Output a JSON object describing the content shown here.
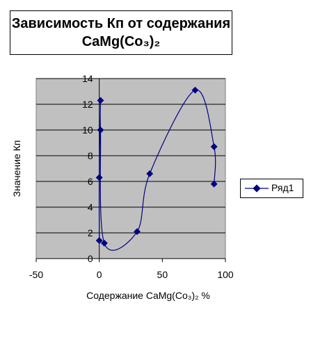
{
  "chart_data": {
    "type": "scatter",
    "title_line1": "Зависимость Кп от содержания",
    "title_line2": "CaMg(Co₃)₂",
    "xlabel": "Содержание CaMg(Co₃)₂ %",
    "ylabel": "Значение Кп",
    "xlim": [
      -50,
      100
    ],
    "ylim": [
      0,
      14
    ],
    "xticks": [
      -50,
      0,
      50,
      100
    ],
    "yticks": [
      0,
      2,
      4,
      6,
      8,
      10,
      12,
      14
    ],
    "grid": "horizontal",
    "legend_position": "right",
    "series": [
      {
        "name": "Ряд1",
        "color": "#000080",
        "points": [
          [
            0,
            1.4
          ],
          [
            0,
            6.3
          ],
          [
            1,
            12.3
          ],
          [
            1,
            10
          ],
          [
            4,
            1.2
          ],
          [
            30,
            2.1
          ],
          [
            40,
            6.6
          ],
          [
            76,
            13.1
          ],
          [
            91,
            8.7
          ],
          [
            91,
            5.8
          ]
        ]
      }
    ]
  }
}
